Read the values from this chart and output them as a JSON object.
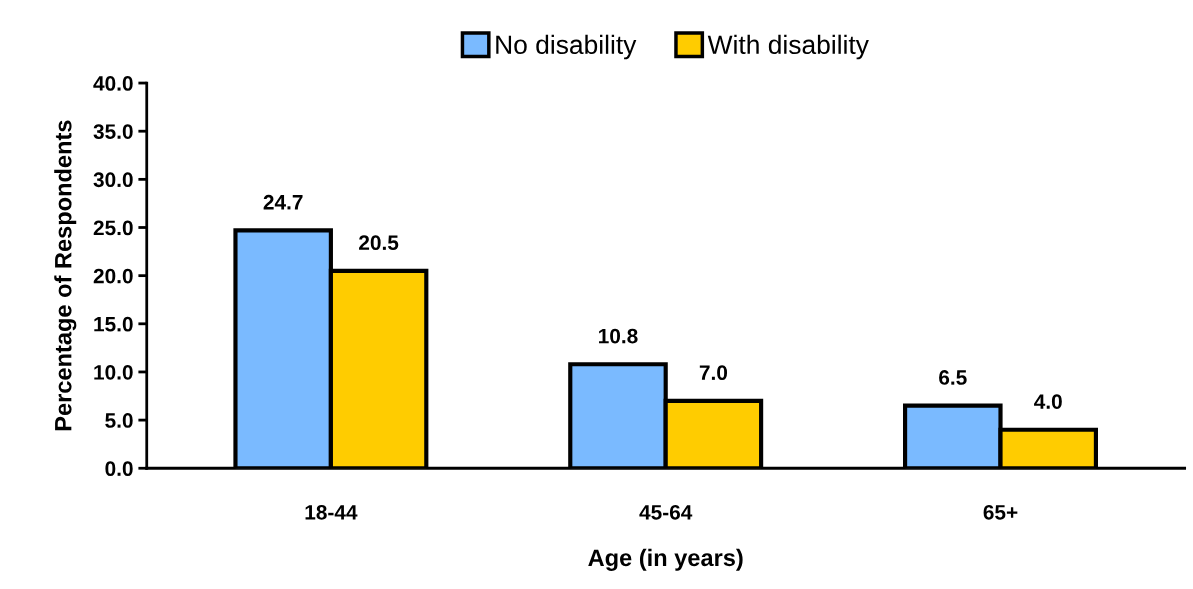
{
  "chart_data": {
    "type": "bar",
    "xlabel": "Age (in years)",
    "ylabel": "Percentage of Respondents",
    "categories": [
      "18-44",
      "45-64",
      "65+"
    ],
    "series": [
      {
        "name": "No disability",
        "color": "#7abaff",
        "values": [
          24.7,
          10.8,
          6.5
        ],
        "value_labels": [
          "24.7",
          "10.8",
          "6.5"
        ]
      },
      {
        "name": "With disability",
        "color": "#ffcc00",
        "values": [
          20.5,
          7.0,
          4.0
        ],
        "value_labels": [
          "20.5",
          "7.0",
          "4.0"
        ]
      }
    ],
    "ylim": [
      0,
      40
    ],
    "yticks": [
      {
        "value": 0,
        "label": "0.0"
      },
      {
        "value": 5,
        "label": "5.0"
      },
      {
        "value": 10,
        "label": "10.0"
      },
      {
        "value": 15,
        "label": "15.0"
      },
      {
        "value": 20,
        "label": "20.0"
      },
      {
        "value": 25,
        "label": "25.0"
      },
      {
        "value": 30,
        "label": "30.0"
      },
      {
        "value": 35,
        "label": "35.0"
      },
      {
        "value": 40,
        "label": "40.0"
      }
    ],
    "grid": false,
    "legend": "top"
  }
}
